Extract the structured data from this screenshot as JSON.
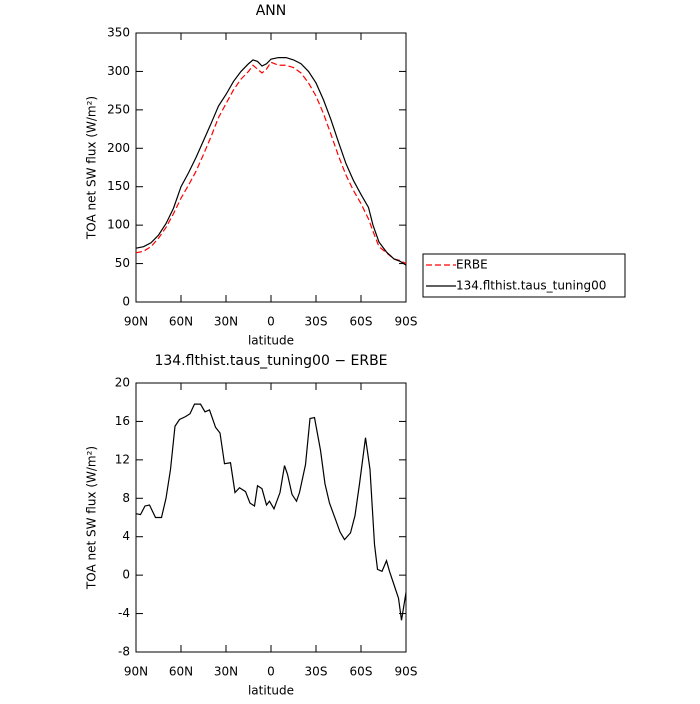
{
  "chart_data": [
    {
      "type": "line",
      "title": "ANN",
      "xlabel": "latitude",
      "ylabel": "TOA net SW flux (W/m²)",
      "xlim": [
        90,
        -90
      ],
      "xticks": [
        {
          "value": 90,
          "label": "90N"
        },
        {
          "value": 60,
          "label": "60N"
        },
        {
          "value": 30,
          "label": "30N"
        },
        0,
        {
          "value": -30,
          "label": "30S"
        },
        {
          "value": -60,
          "label": "60S"
        },
        {
          "value": -90,
          "label": "90S"
        }
      ],
      "ylim": [
        0,
        350
      ],
      "yticks": [
        0,
        50,
        100,
        150,
        200,
        250,
        300,
        350
      ],
      "legend": "outside-right",
      "x": [
        90,
        85,
        80,
        75,
        70,
        65,
        60,
        55,
        50,
        45,
        40,
        35,
        30,
        25,
        20,
        15,
        12,
        9,
        6,
        3,
        0,
        -5,
        -10,
        -15,
        -20,
        -25,
        -30,
        -35,
        -40,
        -45,
        -50,
        -55,
        -60,
        -65,
        -68,
        -72,
        -77,
        -82,
        -86,
        -90
      ],
      "series": [
        {
          "name": "ERBE",
          "color": "#ff0000",
          "line_style": "dashed",
          "values": [
            64,
            66,
            72,
            83,
            97,
            115,
            135,
            152,
            170,
            192,
            215,
            240,
            258,
            276,
            290,
            300,
            308,
            303,
            298,
            303,
            312,
            308,
            308,
            305,
            298,
            285,
            268,
            245,
            218,
            190,
            165,
            145,
            128,
            108,
            92,
            72,
            64,
            56,
            54,
            50
          ]
        },
        {
          "name": "134.flthist.taus_tuning00",
          "color": "#000000",
          "line_style": "solid",
          "values": [
            70,
            72,
            77,
            87,
            102,
            122,
            150,
            168,
            188,
            210,
            232,
            255,
            270,
            287,
            300,
            310,
            315,
            313,
            307,
            310,
            316,
            318,
            318,
            315,
            310,
            300,
            285,
            263,
            237,
            208,
            180,
            158,
            140,
            123,
            100,
            78,
            65,
            56,
            53,
            48
          ]
        }
      ]
    },
    {
      "type": "line",
      "title": "134.flthist.taus_tuning00 − ERBE",
      "xlabel": "latitude",
      "ylabel": "TOA net SW flux (W/m²)",
      "xlim": [
        90,
        -90
      ],
      "xticks": [
        {
          "value": 90,
          "label": "90N"
        },
        {
          "value": 60,
          "label": "60N"
        },
        {
          "value": 30,
          "label": "30N"
        },
        0,
        {
          "value": -30,
          "label": "30S"
        },
        {
          "value": -60,
          "label": "60S"
        },
        {
          "value": -90,
          "label": "90S"
        }
      ],
      "ylim": [
        -8,
        20
      ],
      "yticks": [
        -8,
        -4,
        0,
        4,
        8,
        12,
        16,
        20
      ],
      "x": [
        90,
        87,
        84,
        81,
        77,
        73,
        70,
        67,
        64,
        61,
        57,
        54,
        51,
        47,
        44,
        41,
        37,
        34,
        31,
        27,
        24,
        21,
        17,
        14,
        11,
        9,
        6,
        3,
        1,
        -2,
        -6,
        -9,
        -11,
        -14,
        -17,
        -19,
        -23,
        -26,
        -29,
        -33,
        -36,
        -39,
        -43,
        -46,
        -49,
        -53,
        -56,
        -59,
        -63,
        -66,
        -69,
        -71,
        -74,
        -77,
        -79,
        -82,
        -85,
        -87,
        -90
      ],
      "series": [
        {
          "name": "134.flthist.taus_tuning00 − ERBE",
          "color": "#000000",
          "line_style": "solid",
          "values": [
            6.4,
            6.3,
            7.2,
            7.3,
            6.0,
            6.0,
            8.0,
            11,
            15.5,
            16.2,
            16.5,
            16.8,
            17.8,
            17.8,
            17.0,
            17.2,
            15.4,
            14.8,
            11.6,
            11.7,
            8.6,
            9.1,
            8.7,
            7.5,
            7.2,
            9.3,
            9.0,
            7.3,
            7.7,
            6.9,
            8.6,
            11.4,
            10.5,
            8.4,
            7.7,
            8.6,
            11.5,
            16.3,
            16.4,
            13,
            9.5,
            7.5,
            5.8,
            4.5,
            3.7,
            4.4,
            6.2,
            9.5,
            14.3,
            11,
            3.2,
            0.6,
            0.4,
            1.5,
            0.4,
            -1.0,
            -2.4,
            -4.7,
            -1.8
          ]
        }
      ]
    }
  ]
}
